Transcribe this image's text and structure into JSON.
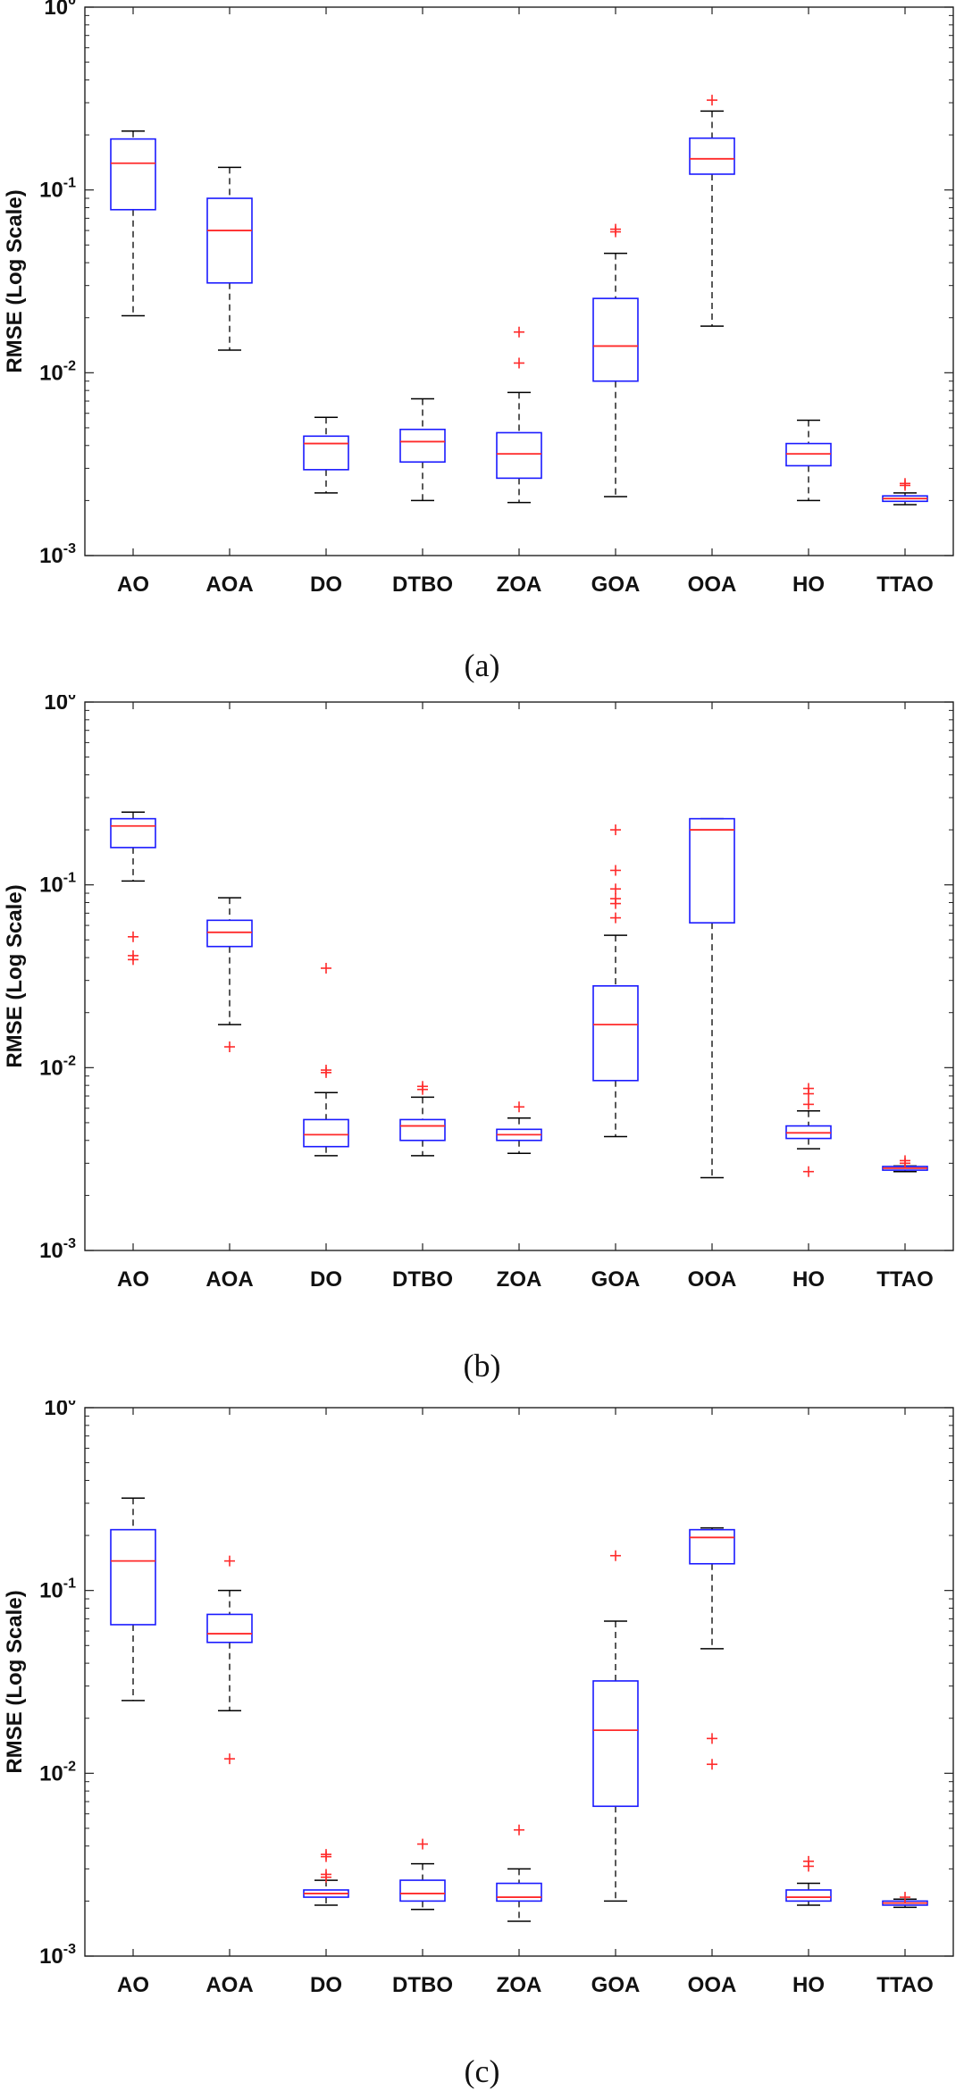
{
  "chart_data": [
    {
      "panel": "a",
      "type": "box",
      "caption": "(a)",
      "ylabel": "RMSE (Log Scale)",
      "yscale": "log",
      "ylim": [
        0.001,
        1
      ],
      "yticks": [
        {
          "base": "10",
          "exp": "-3"
        },
        {
          "base": "10",
          "exp": "-2"
        },
        {
          "base": "10",
          "exp": "-1"
        },
        {
          "base": "10",
          "exp": "0"
        }
      ],
      "categories": [
        "AO",
        "AOA",
        "DO",
        "DTBO",
        "ZOA",
        "GOA",
        "OOA",
        "HO",
        "TTAO"
      ],
      "boxes": [
        {
          "q1": 0.078,
          "median": 0.14,
          "q3": 0.19,
          "wlo": 0.0205,
          "whi": 0.21,
          "outliers": []
        },
        {
          "q1": 0.031,
          "median": 0.06,
          "q3": 0.09,
          "wlo": 0.0133,
          "whi": 0.133,
          "outliers": []
        },
        {
          "q1": 0.00295,
          "median": 0.0041,
          "q3": 0.0045,
          "wlo": 0.0022,
          "whi": 0.0057,
          "outliers": []
        },
        {
          "q1": 0.00325,
          "median": 0.0042,
          "q3": 0.0049,
          "wlo": 0.002,
          "whi": 0.0072,
          "outliers": []
        },
        {
          "q1": 0.00265,
          "median": 0.0036,
          "q3": 0.0047,
          "wlo": 0.00195,
          "whi": 0.0078,
          "outliers": [
            0.0113,
            0.0167
          ]
        },
        {
          "q1": 0.009,
          "median": 0.014,
          "q3": 0.0255,
          "wlo": 0.0021,
          "whi": 0.045,
          "outliers": [
            0.059,
            0.061
          ]
        },
        {
          "q1": 0.122,
          "median": 0.148,
          "q3": 0.192,
          "wlo": 0.018,
          "whi": 0.27,
          "outliers": [
            0.31
          ]
        },
        {
          "q1": 0.0031,
          "median": 0.0036,
          "q3": 0.0041,
          "wlo": 0.002,
          "whi": 0.0055,
          "outliers": []
        },
        {
          "q1": 0.00198,
          "median": 0.00205,
          "q3": 0.00212,
          "wlo": 0.0019,
          "whi": 0.0022,
          "outliers": [
            0.00242,
            0.00248
          ]
        }
      ]
    },
    {
      "panel": "b",
      "type": "box",
      "caption": "(b)",
      "ylabel": "RMSE (Log Scale)",
      "yscale": "log",
      "ylim": [
        0.001,
        1
      ],
      "yticks": [
        {
          "base": "10",
          "exp": "-3"
        },
        {
          "base": "10",
          "exp": "-2"
        },
        {
          "base": "10",
          "exp": "-1"
        },
        {
          "base": "10",
          "exp": "0"
        }
      ],
      "categories": [
        "AO",
        "AOA",
        "DO",
        "DTBO",
        "ZOA",
        "GOA",
        "OOA",
        "HO",
        "TTAO"
      ],
      "boxes": [
        {
          "q1": 0.16,
          "median": 0.21,
          "q3": 0.23,
          "wlo": 0.105,
          "whi": 0.25,
          "outliers": [
            0.052,
            0.041,
            0.039
          ]
        },
        {
          "q1": 0.046,
          "median": 0.055,
          "q3": 0.064,
          "wlo": 0.0172,
          "whi": 0.085,
          "outliers": [
            0.013
          ]
        },
        {
          "q1": 0.0037,
          "median": 0.0043,
          "q3": 0.0052,
          "wlo": 0.0033,
          "whi": 0.0073,
          "outliers": [
            0.0094,
            0.0097,
            0.035
          ]
        },
        {
          "q1": 0.004,
          "median": 0.0048,
          "q3": 0.0052,
          "wlo": 0.0033,
          "whi": 0.0069,
          "outliers": [
            0.0076,
            0.0079
          ]
        },
        {
          "q1": 0.004,
          "median": 0.0043,
          "q3": 0.0046,
          "wlo": 0.0034,
          "whi": 0.0053,
          "outliers": [
            0.0061
          ]
        },
        {
          "q1": 0.0085,
          "median": 0.0172,
          "q3": 0.028,
          "wlo": 0.0042,
          "whi": 0.053,
          "outliers": [
            0.066,
            0.079,
            0.084,
            0.095,
            0.12,
            0.2
          ]
        },
        {
          "q1": 0.062,
          "median": 0.2,
          "q3": 0.23,
          "wlo": 0.0025,
          "whi": 0.23,
          "outliers": []
        },
        {
          "q1": 0.0041,
          "median": 0.0044,
          "q3": 0.0048,
          "wlo": 0.0036,
          "whi": 0.0058,
          "outliers": [
            0.0027,
            0.0063,
            0.0072,
            0.0077
          ]
        },
        {
          "q1": 0.00275,
          "median": 0.00282,
          "q3": 0.00288,
          "wlo": 0.0027,
          "whi": 0.0029,
          "outliers": [
            0.003,
            0.0031
          ]
        }
      ]
    },
    {
      "panel": "c",
      "type": "box",
      "caption": "(c)",
      "ylabel": "RMSE (Log Scale)",
      "yscale": "log",
      "ylim": [
        0.001,
        1
      ],
      "yticks": [
        {
          "base": "10",
          "exp": "-3"
        },
        {
          "base": "10",
          "exp": "-2"
        },
        {
          "base": "10",
          "exp": "-1"
        },
        {
          "base": "10",
          "exp": "0"
        }
      ],
      "categories": [
        "AO",
        "AOA",
        "DO",
        "DTBO",
        "ZOA",
        "GOA",
        "OOA",
        "HO",
        "TTAO"
      ],
      "boxes": [
        {
          "q1": 0.065,
          "median": 0.145,
          "q3": 0.215,
          "wlo": 0.025,
          "whi": 0.32,
          "outliers": []
        },
        {
          "q1": 0.052,
          "median": 0.058,
          "q3": 0.074,
          "wlo": 0.022,
          "whi": 0.1,
          "outliers": [
            0.012,
            0.145
          ]
        },
        {
          "q1": 0.0021,
          "median": 0.0022,
          "q3": 0.0023,
          "wlo": 0.0019,
          "whi": 0.0026,
          "outliers": [
            0.0027,
            0.0028,
            0.0035,
            0.0036
          ]
        },
        {
          "q1": 0.002,
          "median": 0.0022,
          "q3": 0.0026,
          "wlo": 0.0018,
          "whi": 0.0032,
          "outliers": [
            0.0041
          ]
        },
        {
          "q1": 0.002,
          "median": 0.0021,
          "q3": 0.0025,
          "wlo": 0.00155,
          "whi": 0.003,
          "outliers": [
            0.0049
          ]
        },
        {
          "q1": 0.0066,
          "median": 0.0172,
          "q3": 0.032,
          "wlo": 0.002,
          "whi": 0.068,
          "outliers": [
            0.155
          ]
        },
        {
          "q1": 0.14,
          "median": 0.195,
          "q3": 0.215,
          "wlo": 0.048,
          "whi": 0.22,
          "outliers": [
            0.0112,
            0.0155
          ]
        },
        {
          "q1": 0.002,
          "median": 0.0021,
          "q3": 0.0023,
          "wlo": 0.0019,
          "whi": 0.0025,
          "outliers": [
            0.0031,
            0.0033
          ]
        },
        {
          "q1": 0.0019,
          "median": 0.00195,
          "q3": 0.002,
          "wlo": 0.00185,
          "whi": 0.00205,
          "outliers": [
            0.0021
          ]
        }
      ]
    }
  ]
}
